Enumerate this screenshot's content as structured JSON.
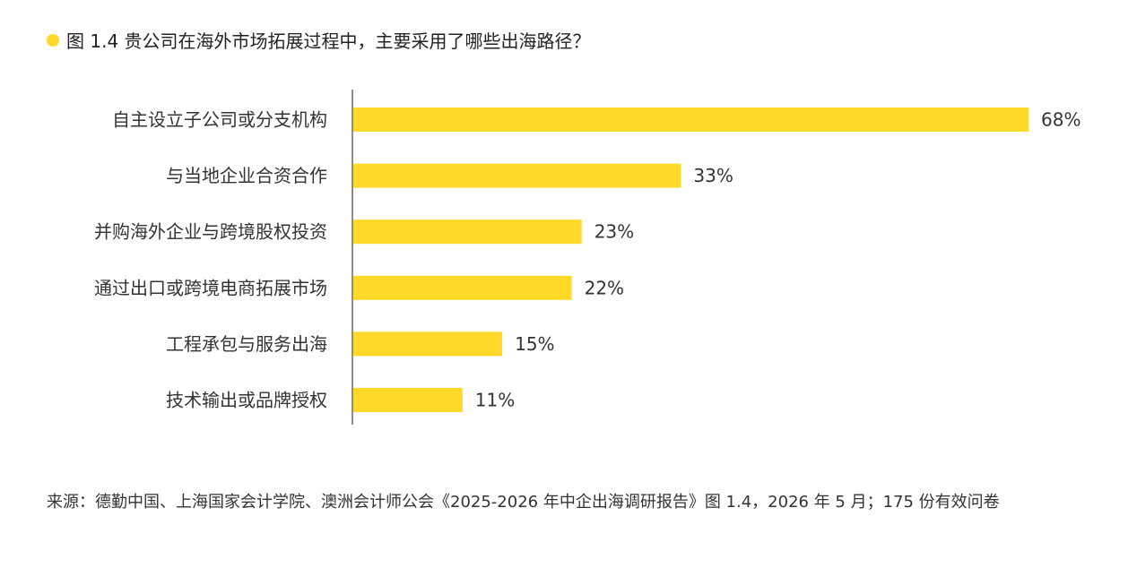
{
  "title": "图 1.4 贵公司在海外市场拓展过程中，主要采用了哪些出海路径？",
  "source": "来源：德勤中国、上海国家会计学院、澳洲会计师公会《2025-2026 年中企出海调研报告》图 1.4，2026 年 5 月；175 份有效问卷",
  "colors": {
    "bar": "#FFD92A",
    "axis": "#666666",
    "text": "#333333",
    "title_dot": "#FFD92A"
  },
  "chart_data": {
    "type": "bar",
    "orientation": "horizontal",
    "title": "图 1.4 贵公司在海外市场拓展过程中，主要采用了哪些出海路径？",
    "categories": [
      "自主设立子公司或分支机构",
      "与当地企业合资合作",
      "并购海外企业与跨境股权投资",
      "通过出口或跨境电商拓展市场",
      "工程承包与服务出海",
      "技术输出或品牌授权"
    ],
    "values": [
      68,
      33,
      23,
      22,
      15,
      11
    ],
    "value_labels": [
      "68%",
      "33%",
      "23%",
      "22%",
      "15%",
      "11%"
    ],
    "unit": "%",
    "xlim": [
      0,
      68
    ],
    "grid": false,
    "legend": "none"
  }
}
